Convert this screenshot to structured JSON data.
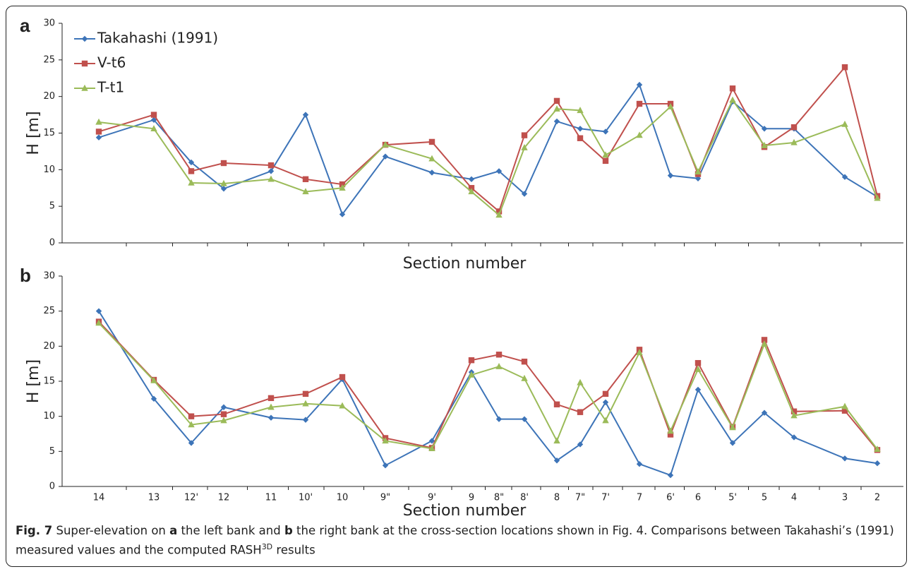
{
  "chart_data": [
    {
      "type": "line",
      "panel_label": "a",
      "x_label": "Section number",
      "y_label": "H [m]",
      "categories": [
        null,
        null,
        null,
        null,
        null,
        null,
        null,
        null,
        null,
        null,
        null,
        null,
        null,
        null,
        null,
        null,
        null,
        null,
        null,
        null,
        null,
        null,
        null
      ],
      "series": [
        {
          "name": "Takahashi (1991)",
          "color": "#3d74b8",
          "marker": "diamond",
          "values": [
            14.4,
            16.8,
            11.0,
            7.4,
            9.8,
            17.5,
            3.9,
            11.8,
            9.6,
            8.7,
            9.8,
            6.7,
            16.6,
            15.6,
            15.2,
            21.6,
            9.2,
            8.8,
            19.3,
            15.6,
            15.6,
            9.0,
            6.3
          ]
        },
        {
          "name": "V-t6",
          "color": "#c0504d",
          "marker": "square",
          "values": [
            15.2,
            17.5,
            9.8,
            10.9,
            10.6,
            8.7,
            8.0,
            13.4,
            13.8,
            7.5,
            4.3,
            14.7,
            19.4,
            14.3,
            11.2,
            19.0,
            19.0,
            9.4,
            21.1,
            13.1,
            15.8,
            24.0,
            6.4
          ]
        },
        {
          "name": "T-t1",
          "color": "#9bbb59",
          "marker": "triangle",
          "values": [
            16.5,
            15.6,
            8.2,
            8.1,
            8.7,
            7.0,
            7.5,
            13.4,
            11.5,
            7.0,
            3.8,
            13.0,
            18.3,
            18.1,
            12.0,
            14.7,
            18.6,
            9.7,
            19.5,
            13.3,
            13.7,
            16.2,
            6.1
          ]
        }
      ],
      "ylim": [
        0,
        30
      ],
      "yticks": [
        0,
        5,
        10,
        15,
        20,
        25,
        30
      ],
      "legend": "upper left"
    },
    {
      "type": "line",
      "panel_label": "b",
      "x_label": "Section number",
      "y_label": "H [m]",
      "categories": [
        "14",
        "13",
        "12'",
        "12",
        "11",
        "10'",
        "10",
        "9\"",
        "9'",
        "9",
        "8\"",
        "8'",
        "8",
        "7\"",
        "7'",
        "7",
        "6'",
        "6",
        "5'",
        "5",
        "4",
        "3",
        "2"
      ],
      "series": [
        {
          "color": "#3d74b8",
          "marker": "diamond",
          "values": [
            25.0,
            12.5,
            6.2,
            11.3,
            9.8,
            9.5,
            15.3,
            3.0,
            6.5,
            16.3,
            9.6,
            9.6,
            3.7,
            6.0,
            12.0,
            3.2,
            1.6,
            13.8,
            6.2,
            10.5,
            7.0,
            4.0,
            3.3
          ]
        },
        {
          "color": "#c0504d",
          "marker": "square",
          "values": [
            23.5,
            15.2,
            10.0,
            10.3,
            12.6,
            13.2,
            15.6,
            6.9,
            5.5,
            18.0,
            18.8,
            17.8,
            11.7,
            10.6,
            13.2,
            19.5,
            7.4,
            17.6,
            8.5,
            20.9,
            10.7,
            10.8,
            5.2
          ]
        },
        {
          "color": "#9bbb59",
          "marker": "triangle",
          "values": [
            23.3,
            15.1,
            8.8,
            9.4,
            11.3,
            11.8,
            11.5,
            6.5,
            5.4,
            15.9,
            17.1,
            15.4,
            6.5,
            14.8,
            9.4,
            19.1,
            7.9,
            16.7,
            8.4,
            20.3,
            10.1,
            11.4,
            5.3
          ]
        }
      ],
      "ylim": [
        0,
        30
      ],
      "yticks": [
        0,
        5,
        10,
        15,
        20,
        25,
        30
      ]
    }
  ],
  "caption": {
    "parts": [
      "Fig. 7",
      " Super-elevation on ",
      "a",
      " the left bank and ",
      "b",
      " the right bank at the cross-section locations shown in Fig. 4. Comparisons between Takahashi’s (1991) measured values and the computed RASH",
      "3D",
      " results"
    ]
  }
}
